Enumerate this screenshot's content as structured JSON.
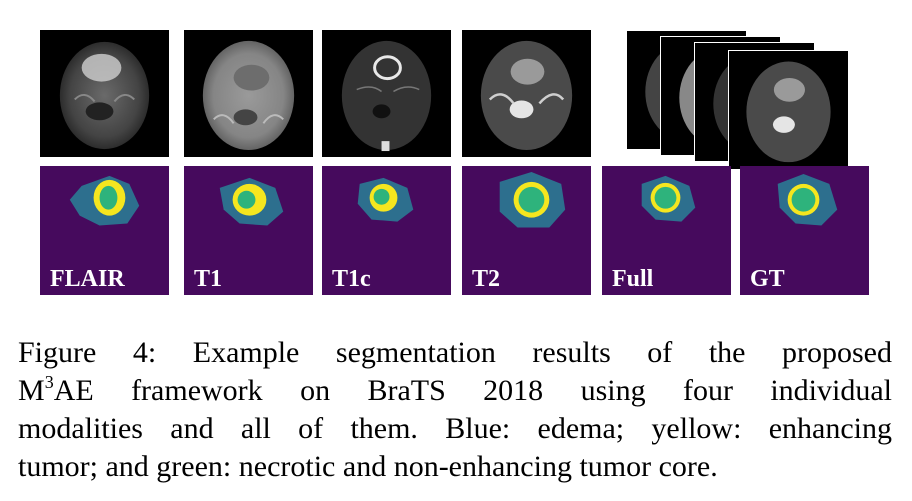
{
  "figure": {
    "panels": [
      {
        "label": "FLAIR"
      },
      {
        "label": "T1"
      },
      {
        "label": "T1c"
      },
      {
        "label": "T2"
      },
      {
        "label": "Full"
      },
      {
        "label": "GT"
      }
    ],
    "legend_colors": {
      "background": "#460a5d",
      "edema": "#2d6f8e",
      "enhancing": "#f5e61f",
      "necrotic": "#2eb37c"
    },
    "caption": {
      "line1": "Figure 4: Example segmentation results of the proposed",
      "line2_pre": "M",
      "line2_sup": "3",
      "line2_post": "AE framework on BraTS 2018 using four individual",
      "line3": "modalities and all of them. Blue: edema; yellow: enhancing",
      "line4": "tumor; and green: necrotic and non-enhancing tumor core."
    }
  }
}
